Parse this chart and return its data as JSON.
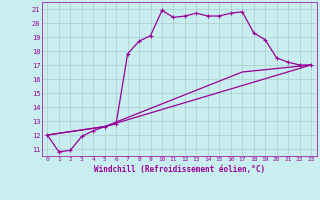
{
  "xlabel": "Windchill (Refroidissement éolien,°C)",
  "background_color": "#c8eef0",
  "grid_color": "#aacccc",
  "line_color": "#990099",
  "xlim": [
    -0.5,
    23.5
  ],
  "ylim": [
    10.5,
    21.5
  ],
  "xticks": [
    0,
    1,
    2,
    3,
    4,
    5,
    6,
    7,
    8,
    9,
    10,
    11,
    12,
    13,
    14,
    15,
    16,
    17,
    18,
    19,
    20,
    21,
    22,
    23
  ],
  "yticks": [
    11,
    12,
    13,
    14,
    15,
    16,
    17,
    18,
    19,
    20,
    21
  ],
  "series": [
    {
      "x": [
        0,
        1,
        2,
        3,
        4,
        5,
        6,
        7,
        8,
        9,
        10,
        11,
        12,
        13,
        14,
        15,
        16,
        17,
        18,
        19,
        20,
        21,
        22,
        23
      ],
      "y": [
        12.0,
        10.8,
        10.9,
        11.9,
        12.3,
        12.6,
        12.8,
        17.8,
        18.7,
        19.1,
        20.9,
        20.4,
        20.5,
        20.7,
        20.5,
        20.5,
        20.7,
        20.8,
        19.3,
        18.8,
        17.5,
        17.2,
        17.0,
        17.0
      ]
    },
    {
      "x": [
        0,
        5,
        17,
        23
      ],
      "y": [
        12.0,
        12.6,
        16.5,
        17.0
      ]
    },
    {
      "x": [
        0,
        5,
        23
      ],
      "y": [
        12.0,
        12.6,
        17.0
      ]
    }
  ]
}
